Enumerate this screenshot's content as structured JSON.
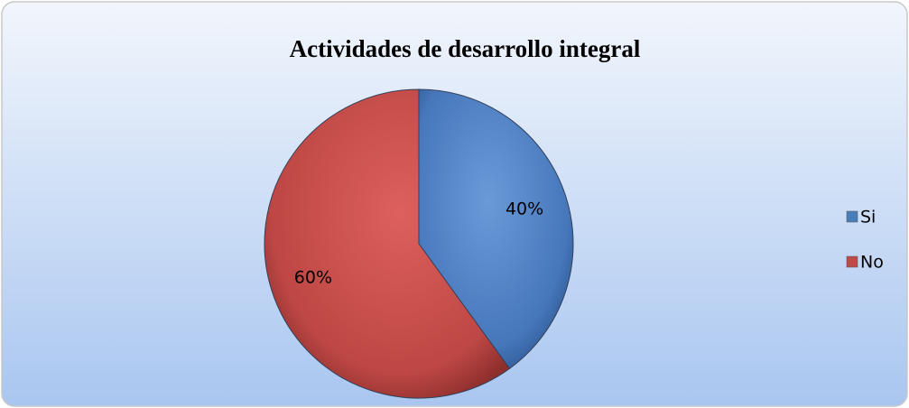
{
  "chart_data": {
    "type": "pie",
    "title": "Actividades de desarrollo integral",
    "categories": [
      "Si",
      "No"
    ],
    "values": [
      40,
      60
    ],
    "value_labels": [
      "40%",
      "60%"
    ],
    "colors": [
      "#4a7ebb",
      "#be4b48"
    ],
    "legend": "right"
  }
}
